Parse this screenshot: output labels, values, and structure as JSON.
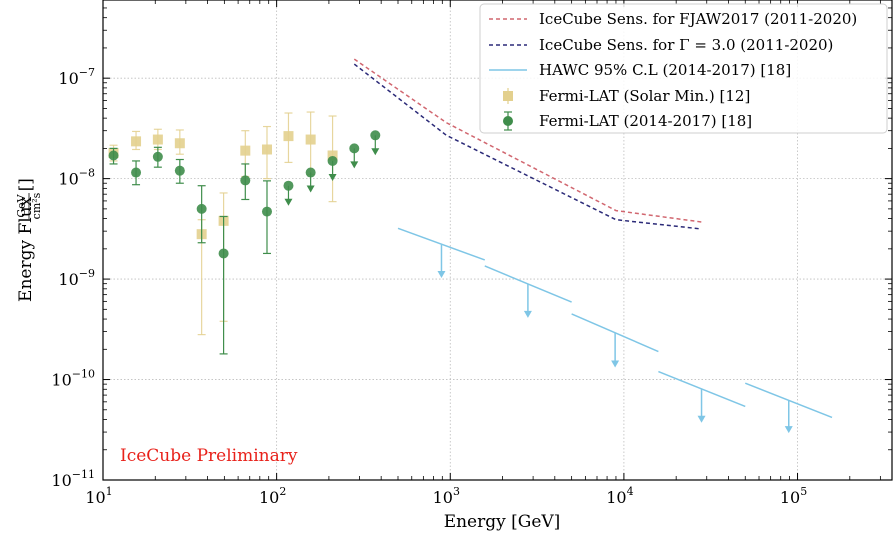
{
  "chart_data": {
    "type": "scatter",
    "xlabel": "Energy [GeV]",
    "ylabel_prefix": "Energy Flux [",
    "ylabel_unit_num": "GeV",
    "ylabel_unit_den": "cm²s",
    "ylabel_suffix": "]",
    "x_scale": "log",
    "y_scale": "log",
    "xlim": [
      10,
      350000
    ],
    "ylim": [
      1e-11,
      6e-07
    ],
    "x_ticks": [
      {
        "value": 10,
        "base": "10",
        "exp": "1"
      },
      {
        "value": 100,
        "base": "10",
        "exp": "2"
      },
      {
        "value": 1000,
        "base": "10",
        "exp": "3"
      },
      {
        "value": 10000,
        "base": "10",
        "exp": "4"
      },
      {
        "value": 100000,
        "base": "10",
        "exp": "5"
      }
    ],
    "y_ticks": [
      {
        "value": 1e-11,
        "base": "10",
        "exp": "−11"
      },
      {
        "value": 1e-10,
        "base": "10",
        "exp": "−10"
      },
      {
        "value": 1e-09,
        "base": "10",
        "exp": "−9"
      },
      {
        "value": 1e-08,
        "base": "10",
        "exp": "−8"
      },
      {
        "value": 1e-07,
        "base": "10",
        "exp": "−7"
      }
    ],
    "grid": true,
    "legend_position": "top-right",
    "annotation": {
      "text": "IceCube Preliminary",
      "color": "#e8211a"
    },
    "sens_fjaw": {
      "name": "IceCube Sens. for FJAW2017 (2011-2020)",
      "color": "#d1666f",
      "x": [
        280,
        950,
        9000,
        28000
      ],
      "y": [
        1.55e-07,
        3.6e-08,
        4.8e-09,
        3.7e-09
      ]
    },
    "sens_gamma": {
      "name": "IceCube Sens. for Γ = 3.0 (2011-2020)",
      "color": "#2b2a78",
      "x": [
        280,
        950,
        9000,
        28000
      ],
      "y": [
        1.38e-07,
        2.7e-08,
        3.9e-09,
        3.15e-09
      ]
    },
    "hawc": {
      "name": "HAWC 95% C.L (2014-2017) [18]",
      "color": "#7fc6e6",
      "segments": [
        {
          "x": [
            500,
            1580
          ],
          "y": [
            3.2e-09,
            1.55e-09
          ],
          "arrow_x": 890,
          "arrow_from": 2.2e-09,
          "arrow_to": 1.05e-09
        },
        {
          "x": [
            1580,
            5000
          ],
          "y": [
            1.35e-09,
            5.9e-10
          ],
          "arrow_x": 2800,
          "arrow_from": 8.9e-10,
          "arrow_to": 4.2e-10
        },
        {
          "x": [
            5000,
            15800
          ],
          "y": [
            4.5e-10,
            1.9e-10
          ],
          "arrow_x": 8900,
          "arrow_from": 2.9e-10,
          "arrow_to": 1.35e-10
        },
        {
          "x": [
            15800,
            50000
          ],
          "y": [
            1.2e-10,
            5.4e-11
          ],
          "arrow_x": 28000,
          "arrow_from": 8.1e-11,
          "arrow_to": 3.8e-11
        },
        {
          "x": [
            50000,
            158000
          ],
          "y": [
            9.2e-11,
            4.2e-11
          ],
          "arrow_x": 89000,
          "arrow_from": 6.2e-11,
          "arrow_to": 3e-11
        }
      ]
    },
    "fermi_solar": {
      "name": "Fermi-LAT (Solar Min.) [12]",
      "color": "#e3d08e",
      "points": [
        {
          "x": 11.5,
          "y": 1.8e-08,
          "lo": 1.5e-08,
          "hi": 2.15e-08
        },
        {
          "x": 15.5,
          "y": 2.35e-08,
          "lo": 1.95e-08,
          "hi": 2.95e-08
        },
        {
          "x": 20.7,
          "y": 2.45e-08,
          "lo": 1.95e-08,
          "hi": 3.1e-08
        },
        {
          "x": 27.7,
          "y": 2.25e-08,
          "lo": 1.75e-08,
          "hi": 3.05e-08
        },
        {
          "x": 37,
          "y": 2.8e-09,
          "lo": 2.8e-10,
          "hi": 3.9e-09
        },
        {
          "x": 49.5,
          "y": 3.8e-09,
          "lo": 3.8e-10,
          "hi": 7.2e-09
        },
        {
          "x": 66,
          "y": 1.9e-08,
          "lo": 1.05e-08,
          "hi": 3e-08
        },
        {
          "x": 88,
          "y": 1.95e-08,
          "lo": 1e-08,
          "hi": 3.3e-08
        },
        {
          "x": 117,
          "y": 2.65e-08,
          "lo": 1.45e-08,
          "hi": 4.5e-08
        },
        {
          "x": 157,
          "y": 2.45e-08,
          "lo": 1.1e-08,
          "hi": 4.6e-08
        },
        {
          "x": 210,
          "y": 1.7e-08,
          "lo": 5.9e-09,
          "hi": 4.2e-08
        }
      ]
    },
    "fermi_2014": {
      "name": "Fermi-LAT (2014-2017) [18]",
      "color": "#3f8d4b",
      "points": [
        {
          "x": 11.5,
          "y": 1.7e-08,
          "lo": 1.4e-08,
          "hi": 2e-08,
          "ul": false
        },
        {
          "x": 15.5,
          "y": 1.15e-08,
          "lo": 8.7e-09,
          "hi": 1.5e-08,
          "ul": false
        },
        {
          "x": 20.7,
          "y": 1.65e-08,
          "lo": 1.3e-08,
          "hi": 2.05e-08,
          "ul": false
        },
        {
          "x": 27.7,
          "y": 1.2e-08,
          "lo": 9e-09,
          "hi": 1.55e-08,
          "ul": false
        },
        {
          "x": 37,
          "y": 5e-09,
          "lo": 2.3e-09,
          "hi": 8.5e-09,
          "ul": false
        },
        {
          "x": 49.5,
          "y": 1.8e-09,
          "lo": 1.8e-10,
          "hi": 4.2e-09,
          "ul": false
        },
        {
          "x": 66,
          "y": 9.6e-09,
          "lo": 6.2e-09,
          "hi": 1.4e-08,
          "ul": false
        },
        {
          "x": 88,
          "y": 4.7e-09,
          "lo": 1.8e-09,
          "hi": 9.5e-09,
          "ul": false
        },
        {
          "x": 117,
          "y": 8.5e-09,
          "ul": true
        },
        {
          "x": 157,
          "y": 1.15e-08,
          "ul": true
        },
        {
          "x": 210,
          "y": 1.5e-08,
          "ul": true
        },
        {
          "x": 280,
          "y": 2e-08,
          "ul": true
        },
        {
          "x": 370,
          "y": 2.7e-08,
          "ul": true
        }
      ]
    }
  }
}
